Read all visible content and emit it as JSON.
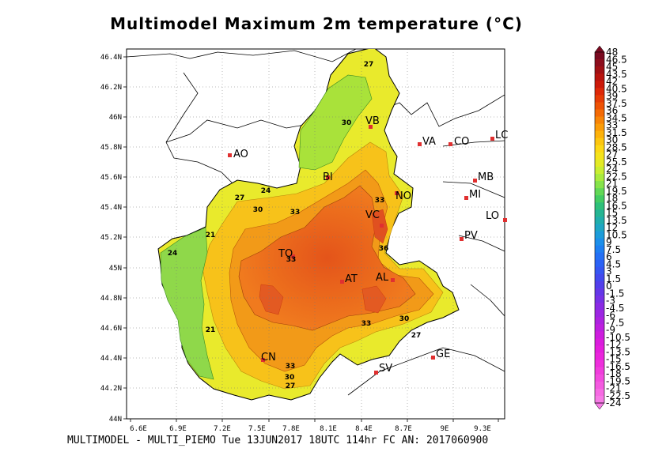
{
  "title": "Multimodel Maximum 2m temperature (°C)",
  "footer": "MULTIMODEL - MULTI_PIEMO Tue 13JUN2017 18UTC 114hr FC AN: 2017060900",
  "axes": {
    "lat_ticks": [
      "46.4N",
      "46.2N",
      "46N",
      "45.8N",
      "45.6N",
      "45.4N",
      "45.2N",
      "45N",
      "44.8N",
      "44.6N",
      "44.4N",
      "44.2N",
      "44N"
    ],
    "lon_ticks": [
      "6.6E",
      "6.9E",
      "7.2E",
      "7.5E",
      "7.8E",
      "8.1E",
      "8.4E",
      "8.7E",
      "9E",
      "9.3E"
    ]
  },
  "cities": [
    {
      "name": "AO"
    },
    {
      "name": "BI"
    },
    {
      "name": "VB"
    },
    {
      "name": "NO"
    },
    {
      "name": "VC"
    },
    {
      "name": "TO"
    },
    {
      "name": "AT"
    },
    {
      "name": "AL"
    },
    {
      "name": "CN"
    },
    {
      "name": "SV"
    },
    {
      "name": "GE"
    },
    {
      "name": "VA"
    },
    {
      "name": "CO"
    },
    {
      "name": "LC"
    },
    {
      "name": "MB"
    },
    {
      "name": "MI"
    },
    {
      "name": "LO"
    },
    {
      "name": "PV"
    }
  ],
  "contour_labels": [
    "27",
    "30",
    "24",
    "27",
    "30",
    "33",
    "21",
    "24",
    "33",
    "33",
    "36",
    "21",
    "33",
    "30",
    "27",
    "33",
    "30",
    "27"
  ],
  "colorbar": {
    "labels": [
      "48",
      "46.5",
      "45",
      "43.5",
      "42",
      "40.5",
      "39",
      "37.5",
      "36",
      "34.5",
      "33",
      "31.5",
      "30",
      "28.5",
      "27",
      "25.5",
      "24",
      "22.5",
      "21",
      "19.5",
      "18",
      "16.5",
      "15",
      "13.5",
      "12",
      "10.5",
      "9",
      "7.5",
      "6",
      "4.5",
      "3",
      "1.5",
      "0",
      "-1.5",
      "-3",
      "-4.5",
      "-6",
      "-7.5",
      "-9",
      "-10.5",
      "-12",
      "-13.5",
      "-15",
      "-16.5",
      "-18",
      "-19.5",
      "-21",
      "-22.5",
      "-24"
    ],
    "colors": [
      "#7a0a20",
      "#8c0d1c",
      "#a01014",
      "#b8140e",
      "#cc1a0a",
      "#dd2808",
      "#e63c06",
      "#ee5205",
      "#f46a05",
      "#f88406",
      "#fb9c08",
      "#fdb20b",
      "#fdc60f",
      "#fdd815",
      "#f5e31c",
      "#e3ea26",
      "#c9ee32",
      "#a9eb3e",
      "#86e34a",
      "#62d856",
      "#43cc63",
      "#2ec07a",
      "#25b593",
      "#20aeac",
      "#1ea6c4",
      "#1c9cda",
      "#1c8fea",
      "#1e7ff2",
      "#2470f5",
      "#2b62f5",
      "#3656f2",
      "#4349ee",
      "#523feb",
      "#6437e8",
      "#7731e6",
      "#8a2be4",
      "#9c26e2",
      "#ad22e0",
      "#be1fdf",
      "#cd1dde",
      "#da1cdd",
      "#e41edc",
      "#ea24dc",
      "#ee2fdc",
      "#f03ddc",
      "#f24bde",
      "#f45ae0",
      "#f66ae3",
      "#f77ae6"
    ]
  }
}
